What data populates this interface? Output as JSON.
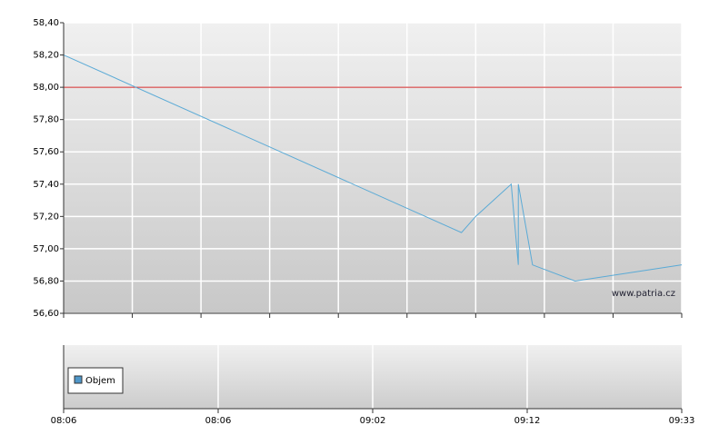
{
  "chart_data": {
    "type": "line",
    "x": [
      "08:06",
      "09:02",
      "09:04",
      "09:09",
      "09:10",
      "09:10",
      "09:12",
      "09:18",
      "09:33"
    ],
    "values": [
      58.2,
      57.1,
      57.2,
      57.4,
      56.9,
      57.4,
      56.9,
      56.8,
      56.9
    ],
    "color": "#5aaad6",
    "xlim": [
      "08:06",
      "09:33"
    ],
    "ylim": [
      56.6,
      58.4
    ],
    "yticks": [
      {
        "value": 56.6,
        "label": "56,60"
      },
      {
        "value": 56.8,
        "label": "56,80"
      },
      {
        "value": 57.0,
        "label": "57,00"
      },
      {
        "value": 57.2,
        "label": "57,20"
      },
      {
        "value": 57.4,
        "label": "57,40"
      },
      {
        "value": 57.6,
        "label": "57,60"
      },
      {
        "value": 57.8,
        "label": "57,80"
      },
      {
        "value": 58.0,
        "label": "58,00"
      },
      {
        "value": 58.2,
        "label": "58,20"
      },
      {
        "value": 58.4,
        "label": "58,40"
      }
    ],
    "grid": true,
    "reference_line": {
      "value": 58.0,
      "color": "#cc2222"
    },
    "watermark": "www.patria.cz",
    "volume_panel": {
      "legend": "Objem",
      "color": "#4f97c9",
      "xticks": [
        "08:06",
        "08:06",
        "09:02",
        "09:12",
        "09:33"
      ]
    }
  }
}
